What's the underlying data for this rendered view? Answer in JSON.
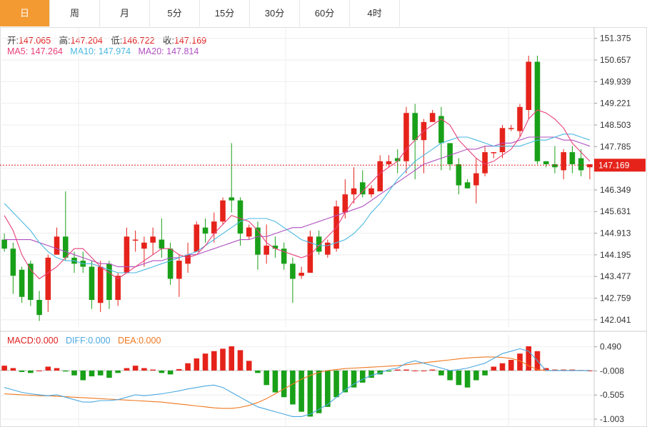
{
  "tabs": [
    {
      "label": "日",
      "active": true
    },
    {
      "label": "周",
      "active": false
    },
    {
      "label": "月",
      "active": false
    },
    {
      "label": "5分",
      "active": false
    },
    {
      "label": "15分",
      "active": false
    },
    {
      "label": "30分",
      "active": false
    },
    {
      "label": "60分",
      "active": false
    },
    {
      "label": "4时",
      "active": false
    }
  ],
  "ohlc_info": {
    "open_label": "开:",
    "open": "147.065",
    "high_label": "高:",
    "high": "147.204",
    "low_label": "低:",
    "low": "146.722",
    "close_label": "收:",
    "close": "147.169"
  },
  "ma_info": {
    "ma5_label": "MA5:",
    "ma5": "147.264",
    "ma10_label": "MA10:",
    "ma10": "147.974",
    "ma20_label": "MA20:",
    "ma20": "147.814"
  },
  "macd_info": {
    "macd_label": "MACD:",
    "macd": "0.000",
    "diff_label": "DIFF:",
    "diff": "0.000",
    "dea_label": "DEA:",
    "dea": "0.000"
  },
  "colors": {
    "up": "#e5231b",
    "down": "#19a019",
    "ma5": "#e8407a",
    "ma10": "#4ab8e0",
    "ma20": "#b050c0",
    "diff": "#4aa8e0",
    "dea": "#f07820",
    "grid": "#eeeeee",
    "axis_text": "#333333"
  },
  "chart_data": {
    "type": "candlestick",
    "price_axis": {
      "ticks": [
        "151.375",
        "150.657",
        "149.939",
        "149.221",
        "148.503",
        "147.785",
        "147.067",
        "146.349",
        "145.631",
        "144.913",
        "144.195",
        "143.477",
        "142.759",
        "142.041"
      ],
      "range": [
        141.8,
        151.7
      ],
      "current_price": "147.169"
    },
    "macd_axis": {
      "ticks": [
        "0.490",
        "-0.008",
        "-0.505",
        "-1.003"
      ],
      "range": [
        -1.15,
        0.75
      ]
    },
    "candles": [
      [
        144.7,
        144.4,
        144.9,
        144.3
      ],
      [
        144.4,
        143.5,
        144.6,
        142.9
      ],
      [
        143.7,
        142.8,
        143.8,
        142.6
      ],
      [
        143.9,
        142.7,
        144.0,
        142.5
      ],
      [
        142.7,
        142.2,
        143.0,
        142.0
      ],
      [
        142.7,
        144.1,
        144.2,
        142.3
      ],
      [
        144.2,
        144.8,
        145.1,
        144.3
      ],
      [
        144.8,
        144.1,
        146.3,
        144.0
      ],
      [
        144.1,
        143.9,
        144.3,
        143.6
      ],
      [
        144.0,
        143.8,
        144.3,
        143.6
      ],
      [
        143.8,
        142.7,
        144.0,
        142.4
      ],
      [
        142.6,
        143.8,
        144.0,
        142.3
      ],
      [
        143.9,
        142.7,
        144.0,
        142.4
      ],
      [
        142.7,
        143.5,
        143.6,
        142.5
      ],
      [
        143.6,
        144.8,
        145.1,
        143.7
      ],
      [
        144.7,
        144.7,
        145.0,
        144.3
      ],
      [
        144.4,
        144.6,
        144.8,
        143.8
      ],
      [
        144.6,
        144.8,
        145.1,
        144.2
      ],
      [
        144.7,
        144.4,
        145.4,
        144.1
      ],
      [
        144.4,
        143.4,
        144.6,
        143.2
      ],
      [
        143.4,
        144.0,
        144.2,
        142.8
      ],
      [
        143.9,
        144.2,
        144.6,
        143.6
      ],
      [
        144.3,
        145.2,
        145.3,
        144.4
      ],
      [
        145.1,
        144.9,
        145.4,
        144.6
      ],
      [
        144.9,
        145.3,
        145.6,
        144.6
      ],
      [
        145.3,
        146.0,
        146.1,
        145.2
      ],
      [
        146.1,
        146.0,
        147.9,
        145.6
      ],
      [
        146.0,
        144.9,
        146.1,
        144.5
      ],
      [
        144.8,
        145.1,
        145.2,
        144.7
      ],
      [
        145.1,
        144.2,
        145.3,
        143.7
      ],
      [
        144.2,
        144.5,
        145.2,
        143.9
      ],
      [
        144.5,
        144.4,
        144.8,
        144.1
      ],
      [
        144.4,
        143.9,
        144.6,
        143.7
      ],
      [
        143.9,
        143.4,
        144.1,
        142.6
      ],
      [
        143.5,
        143.6,
        143.8,
        143.4
      ],
      [
        143.6,
        144.8,
        145.0,
        143.6
      ],
      [
        144.8,
        144.3,
        145.0,
        144.2
      ],
      [
        144.2,
        144.6,
        144.7,
        144.1
      ],
      [
        144.4,
        145.8,
        146.0,
        144.3
      ],
      [
        145.6,
        146.2,
        146.7,
        145.4
      ],
      [
        146.2,
        146.4,
        147.1,
        145.9
      ],
      [
        146.6,
        146.2,
        147.0,
        146.1
      ],
      [
        146.2,
        146.4,
        146.5,
        146.1
      ],
      [
        146.3,
        147.3,
        147.5,
        146.3
      ],
      [
        147.2,
        147.3,
        147.5,
        147.1
      ],
      [
        147.4,
        147.3,
        147.7,
        146.9
      ],
      [
        147.3,
        148.9,
        149.1,
        146.9
      ],
      [
        148.9,
        148.0,
        149.2,
        146.7
      ],
      [
        148.0,
        148.6,
        148.7,
        146.9
      ],
      [
        148.6,
        148.9,
        149.0,
        148.6
      ],
      [
        148.8,
        147.9,
        149.1,
        147.0
      ],
      [
        147.9,
        147.2,
        147.6,
        147.0
      ],
      [
        147.2,
        146.5,
        147.4,
        146.2
      ],
      [
        146.6,
        146.4,
        146.7,
        146.4
      ],
      [
        146.5,
        146.9,
        147.4,
        145.9
      ],
      [
        146.9,
        147.6,
        147.8,
        146.8
      ],
      [
        147.6,
        147.6,
        147.6,
        147.4
      ],
      [
        147.6,
        148.4,
        148.5,
        147.4
      ],
      [
        148.4,
        148.4,
        148.5,
        148.3
      ],
      [
        148.3,
        149.1,
        149.2,
        148.1
      ],
      [
        149.0,
        150.6,
        150.8,
        148.7
      ],
      [
        150.6,
        147.3,
        150.8,
        147.2
      ],
      [
        147.3,
        147.2,
        147.3,
        147.1
      ],
      [
        147.2,
        147.1,
        147.8,
        146.9
      ],
      [
        147.0,
        147.6,
        147.7,
        146.7
      ],
      [
        147.6,
        147.2,
        147.8,
        146.9
      ],
      [
        147.4,
        147.0,
        147.7,
        146.8
      ],
      [
        147.1,
        147.2,
        147.2,
        146.7
      ]
    ],
    "ma5": [
      145.5,
      145.0,
      144.2,
      143.7,
      143.4,
      143.6,
      143.8,
      144.1,
      144.4,
      144.4,
      144.1,
      143.8,
      143.6,
      143.4,
      143.6,
      143.8,
      144.0,
      144.2,
      144.4,
      144.4,
      144.2,
      144.1,
      144.2,
      144.5,
      144.9,
      145.2,
      145.5,
      145.4,
      145.3,
      145.0,
      144.6,
      144.4,
      144.3,
      144.2,
      144.1,
      144.2,
      144.5,
      144.8,
      145.1,
      145.6,
      146.0,
      146.3,
      146.6,
      146.9,
      147.1,
      147.3,
      147.7,
      148.0,
      148.3,
      148.5,
      148.7,
      148.5,
      148.0,
      147.7,
      147.4,
      147.2,
      147.3,
      147.5,
      147.7,
      148.1,
      148.7,
      149.0,
      148.9,
      148.7,
      148.4,
      147.9,
      147.6,
      147.3
    ],
    "ma10": [
      145.9,
      145.6,
      145.3,
      145.0,
      144.6,
      144.3,
      144.1,
      144.0,
      144.0,
      143.9,
      143.9,
      143.8,
      143.7,
      143.6,
      143.6,
      143.6,
      143.7,
      143.8,
      143.9,
      144.0,
      144.1,
      144.2,
      144.3,
      144.5,
      144.7,
      144.9,
      145.1,
      145.3,
      145.4,
      145.4,
      145.4,
      145.3,
      145.1,
      144.9,
      144.7,
      144.6,
      144.5,
      144.5,
      144.6,
      144.7,
      144.9,
      145.2,
      145.6,
      145.9,
      146.3,
      146.7,
      147.0,
      147.3,
      147.5,
      147.7,
      147.9,
      148.0,
      148.1,
      148.1,
      148.0,
      147.9,
      147.8,
      147.8,
      147.8,
      147.8,
      147.9,
      148.0,
      148.0,
      148.1,
      148.2,
      148.2,
      148.1,
      148.0
    ],
    "ma20": [
      144.7,
      144.7,
      144.7,
      144.7,
      144.6,
      144.5,
      144.4,
      144.3,
      144.2,
      144.1,
      144.0,
      143.9,
      143.9,
      143.8,
      143.8,
      143.8,
      143.9,
      144.0,
      144.0,
      144.1,
      144.1,
      144.2,
      144.2,
      144.3,
      144.4,
      144.5,
      144.6,
      144.7,
      144.7,
      144.8,
      144.8,
      144.9,
      145.0,
      145.1,
      145.1,
      145.2,
      145.3,
      145.4,
      145.5,
      145.6,
      145.7,
      145.8,
      146.0,
      146.2,
      146.4,
      146.6,
      146.8,
      147.0,
      147.2,
      147.3,
      147.4,
      147.5,
      147.6,
      147.7,
      147.7,
      147.8,
      147.8,
      147.9,
      147.9,
      148.0,
      148.1,
      148.1,
      148.1,
      148.1,
      148.0,
      148.0,
      147.9,
      147.8
    ],
    "macd_hist": [
      0.1,
      0.05,
      -0.03,
      -0.05,
      0.0,
      0.08,
      0.05,
      -0.02,
      -0.1,
      -0.2,
      -0.12,
      -0.1,
      -0.15,
      -0.05,
      0.05,
      0.1,
      0.05,
      0.02,
      -0.05,
      -0.08,
      0.03,
      0.15,
      0.25,
      0.35,
      0.4,
      0.45,
      0.5,
      0.42,
      0.2,
      -0.05,
      -0.3,
      -0.45,
      -0.55,
      -0.7,
      -0.85,
      -0.95,
      -0.88,
      -0.75,
      -0.55,
      -0.45,
      -0.35,
      -0.25,
      -0.15,
      -0.08,
      -0.02,
      0.02,
      0.02,
      0.0,
      0.0,
      0.02,
      -0.1,
      -0.2,
      -0.3,
      -0.35,
      -0.2,
      -0.1,
      0.08,
      0.15,
      0.22,
      0.35,
      0.5,
      0.4,
      0.05,
      0.02,
      0.02,
      0.02,
      0.01,
      0.0
    ],
    "diff": [
      -0.35,
      -0.4,
      -0.45,
      -0.48,
      -0.5,
      -0.52,
      -0.5,
      -0.55,
      -0.6,
      -0.65,
      -0.65,
      -0.62,
      -0.62,
      -0.6,
      -0.55,
      -0.5,
      -0.52,
      -0.5,
      -0.48,
      -0.45,
      -0.42,
      -0.38,
      -0.35,
      -0.32,
      -0.3,
      -0.35,
      -0.45,
      -0.55,
      -0.65,
      -0.75,
      -0.8,
      -0.85,
      -0.9,
      -0.95,
      -0.95,
      -0.9,
      -0.8,
      -0.7,
      -0.55,
      -0.4,
      -0.28,
      -0.18,
      -0.1,
      -0.05,
      0.02,
      0.05,
      0.15,
      0.2,
      0.15,
      0.1,
      0.05,
      0.0,
      0.02,
      0.05,
      0.1,
      0.15,
      0.25,
      0.35,
      0.4,
      0.45,
      0.4,
      0.2,
      0.0,
      0.0,
      0.0,
      0.0,
      0.0,
      0.0
    ],
    "dea": [
      -0.48,
      -0.49,
      -0.5,
      -0.51,
      -0.52,
      -0.52,
      -0.53,
      -0.54,
      -0.55,
      -0.56,
      -0.57,
      -0.58,
      -0.59,
      -0.6,
      -0.61,
      -0.62,
      -0.63,
      -0.64,
      -0.65,
      -0.67,
      -0.69,
      -0.71,
      -0.73,
      -0.75,
      -0.77,
      -0.78,
      -0.78,
      -0.76,
      -0.72,
      -0.66,
      -0.58,
      -0.48,
      -0.38,
      -0.28,
      -0.18,
      -0.1,
      -0.04,
      0.0,
      0.02,
      0.04,
      0.05,
      0.06,
      0.07,
      0.08,
      0.09,
      0.1,
      0.12,
      0.14,
      0.16,
      0.18,
      0.2,
      0.22,
      0.24,
      0.26,
      0.27,
      0.28,
      0.28,
      0.27,
      0.25,
      0.2,
      0.1,
      0.02,
      0.0,
      0.0,
      0.0,
      0.0,
      0.0,
      0.0
    ]
  }
}
